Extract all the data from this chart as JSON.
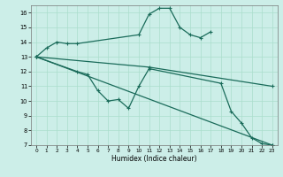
{
  "xlabel": "Humidex (Indice chaleur)",
  "background_color": "#cceee8",
  "grid_color": "#aaddcc",
  "line_color": "#1a6b5a",
  "xlim": [
    -0.5,
    23.5
  ],
  "ylim": [
    7,
    16.5
  ],
  "yticks": [
    7,
    8,
    9,
    10,
    11,
    12,
    13,
    14,
    15,
    16
  ],
  "xticks": [
    0,
    1,
    2,
    3,
    4,
    5,
    6,
    7,
    8,
    9,
    10,
    11,
    12,
    13,
    14,
    15,
    16,
    17,
    18,
    19,
    20,
    21,
    22,
    23
  ],
  "line1_x": [
    0,
    1,
    2,
    3,
    4,
    10,
    11,
    12,
    13,
    14,
    15,
    16,
    17
  ],
  "line1_y": [
    13.0,
    13.6,
    14.0,
    13.9,
    13.9,
    14.5,
    15.9,
    16.3,
    16.3,
    15.0,
    14.5,
    14.3,
    14.7
  ],
  "line2_x": [
    0,
    4,
    5,
    6,
    7,
    8,
    9,
    10,
    11,
    18,
    19,
    20,
    21,
    22,
    23
  ],
  "line2_y": [
    13.0,
    12.0,
    11.8,
    10.7,
    10.0,
    10.1,
    9.5,
    11.0,
    12.2,
    11.2,
    9.3,
    8.5,
    7.5,
    7.1,
    7.0
  ],
  "line3_x": [
    0,
    23
  ],
  "line3_y": [
    13.0,
    7.0
  ],
  "line4_x": [
    0,
    11,
    23
  ],
  "line4_y": [
    13.0,
    12.3,
    11.0
  ]
}
